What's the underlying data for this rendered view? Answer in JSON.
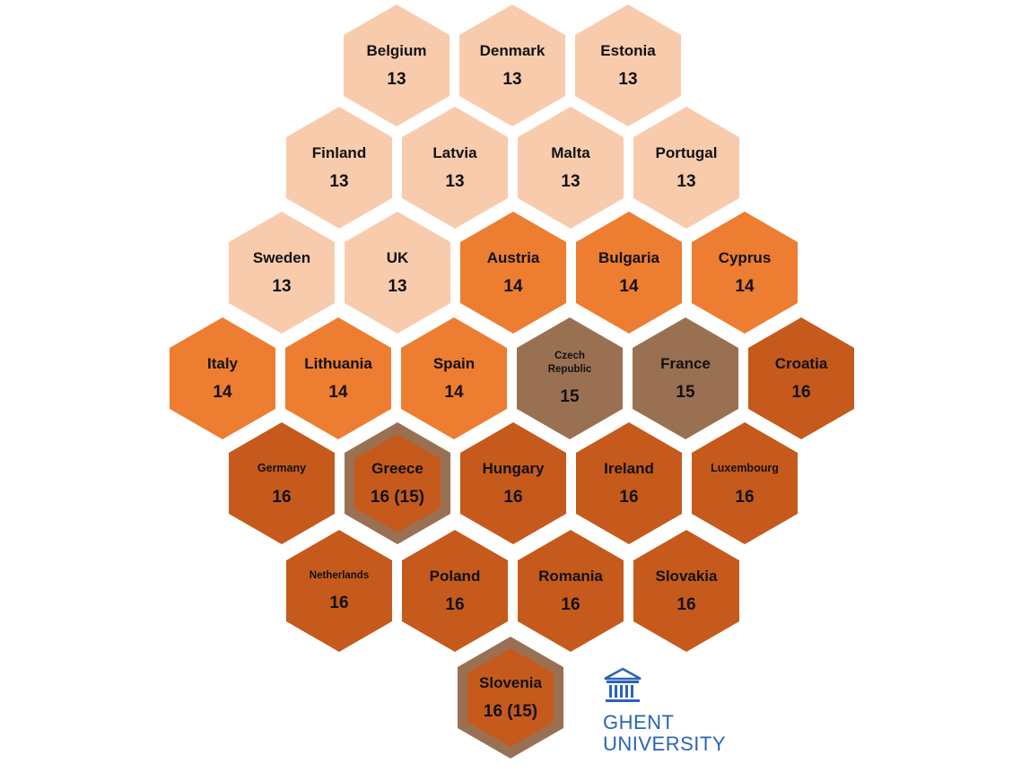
{
  "colors": {
    "age13": "#f8cbad",
    "age14": "#ed7d31",
    "age15": "#9a7053",
    "age16": "#c55a1c",
    "mixedBorder": "#9a7053",
    "logo": "#2a63b7"
  },
  "hexes": [
    {
      "country": "Belgium",
      "score": "13",
      "level": "age13",
      "row": 0,
      "col": 0
    },
    {
      "country": "Denmark",
      "score": "13",
      "level": "age13",
      "row": 0,
      "col": 1
    },
    {
      "country": "Estonia",
      "score": "13",
      "level": "age13",
      "row": 0,
      "col": 2
    },
    {
      "country": "Finland",
      "score": "13",
      "level": "age13",
      "row": 1,
      "col": 0
    },
    {
      "country": "Latvia",
      "score": "13",
      "level": "age13",
      "row": 1,
      "col": 1
    },
    {
      "country": "Malta",
      "score": "13",
      "level": "age13",
      "row": 1,
      "col": 2
    },
    {
      "country": "Portugal",
      "score": "13",
      "level": "age13",
      "row": 1,
      "col": 3
    },
    {
      "country": "Sweden",
      "score": "13",
      "level": "age13",
      "row": 2,
      "col": 0
    },
    {
      "country": "UK",
      "score": "13",
      "level": "age13",
      "row": 2,
      "col": 1
    },
    {
      "country": "Austria",
      "score": "14",
      "level": "age14",
      "row": 2,
      "col": 2
    },
    {
      "country": "Bulgaria",
      "score": "14",
      "level": "age14",
      "row": 2,
      "col": 3
    },
    {
      "country": "Cyprus",
      "score": "14",
      "level": "age14",
      "row": 2,
      "col": 4
    },
    {
      "country": "Italy",
      "score": "14",
      "level": "age14",
      "row": 3,
      "col": 0
    },
    {
      "country": "Lithuania",
      "score": "14",
      "level": "age14",
      "row": 3,
      "col": 1
    },
    {
      "country": "Spain",
      "score": "14",
      "level": "age14",
      "row": 3,
      "col": 2
    },
    {
      "country": "Czech Republic",
      "score": "15",
      "level": "age15",
      "row": 3,
      "col": 3,
      "size": "xsmall"
    },
    {
      "country": "France",
      "score": "15",
      "level": "age15",
      "row": 3,
      "col": 4
    },
    {
      "country": "Croatia",
      "score": "16",
      "level": "age16",
      "row": 3,
      "col": 5
    },
    {
      "country": "Germany",
      "score": "16",
      "level": "age16",
      "row": 4,
      "col": 0,
      "size": "small"
    },
    {
      "country": "Greece",
      "score": "16 (15)",
      "level": "age16",
      "row": 4,
      "col": 1,
      "border": "mixedBorder"
    },
    {
      "country": "Hungary",
      "score": "16",
      "level": "age16",
      "row": 4,
      "col": 2
    },
    {
      "country": "Ireland",
      "score": "16",
      "level": "age16",
      "row": 4,
      "col": 3
    },
    {
      "country": "Luxembourg",
      "score": "16",
      "level": "age16",
      "row": 4,
      "col": 4,
      "size": "small"
    },
    {
      "country": "Netherlands",
      "score": "16",
      "level": "age16",
      "row": 5,
      "col": 0,
      "size": "xsmall"
    },
    {
      "country": "Poland",
      "score": "16",
      "level": "age16",
      "row": 5,
      "col": 1
    },
    {
      "country": "Romania",
      "score": "16",
      "level": "age16",
      "row": 5,
      "col": 2
    },
    {
      "country": "Slovakia",
      "score": "16",
      "level": "age16",
      "row": 5,
      "col": 3
    },
    {
      "country": "Slovenia",
      "score": "16 (15)",
      "level": "age16",
      "row": 6,
      "col": 0,
      "border": "mixedBorder"
    }
  ],
  "logo": {
    "icon": "university-building-icon",
    "line1": "GHENT",
    "line2": "UNIVERSITY"
  }
}
